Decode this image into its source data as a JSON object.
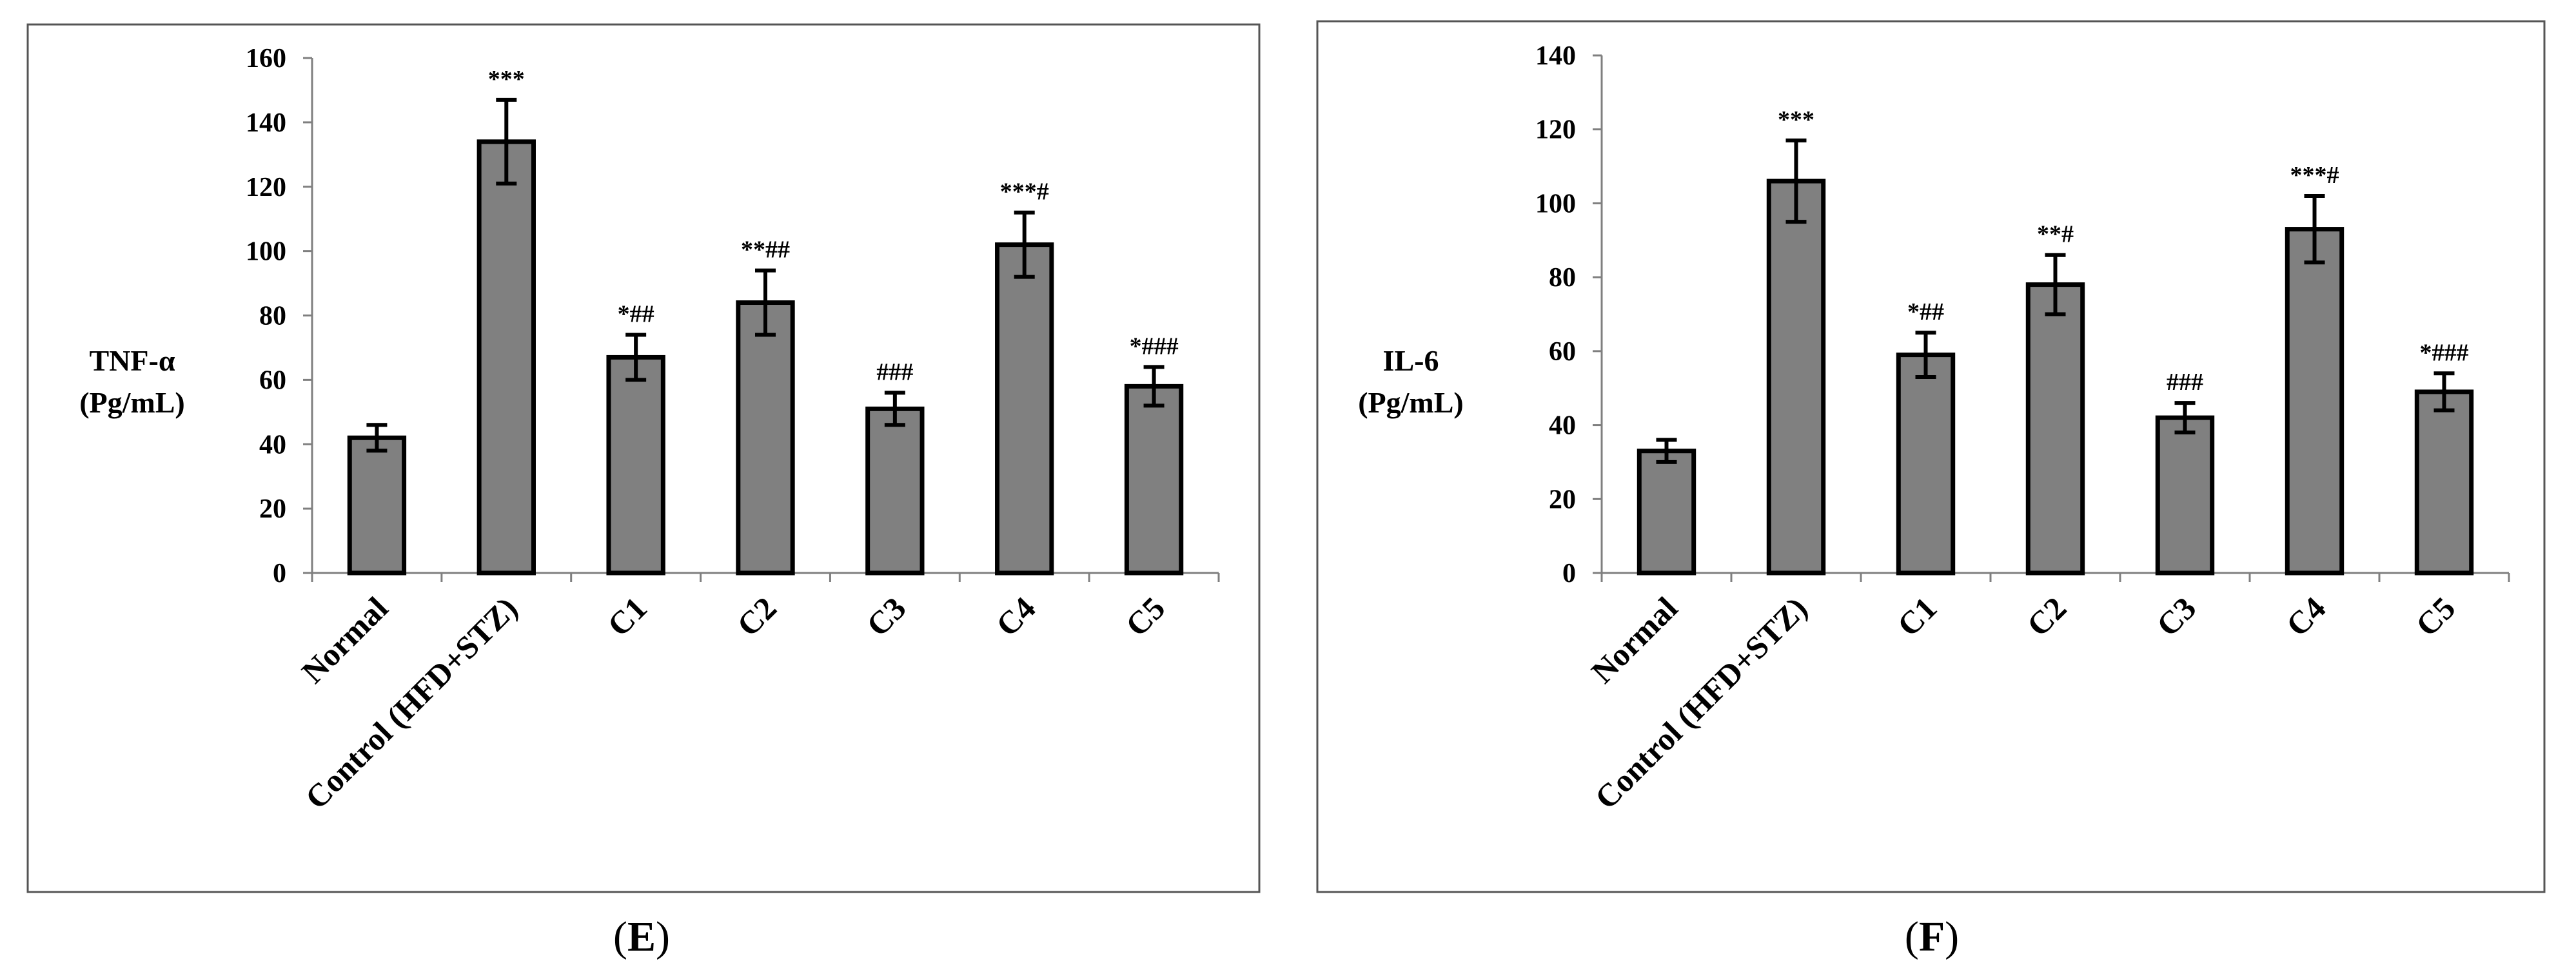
{
  "chart_data": [
    {
      "type": "bar",
      "panel": "E",
      "ylabel": [
        "TNF-α",
        "(Pg/mL)"
      ],
      "ylim": [
        0,
        160
      ],
      "yticks": [
        0,
        20,
        40,
        60,
        80,
        100,
        120,
        140,
        160
      ],
      "categories": [
        "Normal",
        "Control (HFD+STZ)",
        "C1",
        "C2",
        "C3",
        "C4",
        "C5"
      ],
      "values": [
        42,
        134,
        67,
        84,
        51,
        102,
        58
      ],
      "errors": [
        4,
        13,
        7,
        10,
        5,
        10,
        6
      ],
      "significance": [
        "",
        "***",
        "*##",
        "**##",
        "###",
        "***#",
        "*###"
      ],
      "grid": false,
      "legend": "none"
    },
    {
      "type": "bar",
      "panel": "F",
      "ylabel": [
        "IL-6",
        "(Pg/mL)"
      ],
      "ylim": [
        0,
        140
      ],
      "yticks": [
        0,
        20,
        40,
        60,
        80,
        100,
        120,
        140
      ],
      "categories": [
        "Normal",
        "Control (HFD+STZ)",
        "C1",
        "C2",
        "C3",
        "C4",
        "C5"
      ],
      "values": [
        33,
        106,
        59,
        78,
        42,
        93,
        49
      ],
      "errors": [
        3,
        11,
        6,
        8,
        4,
        9,
        5
      ],
      "significance": [
        "",
        "***",
        "*##",
        "**#",
        "###",
        "***#",
        "*###"
      ],
      "grid": false,
      "legend": "none"
    }
  ]
}
